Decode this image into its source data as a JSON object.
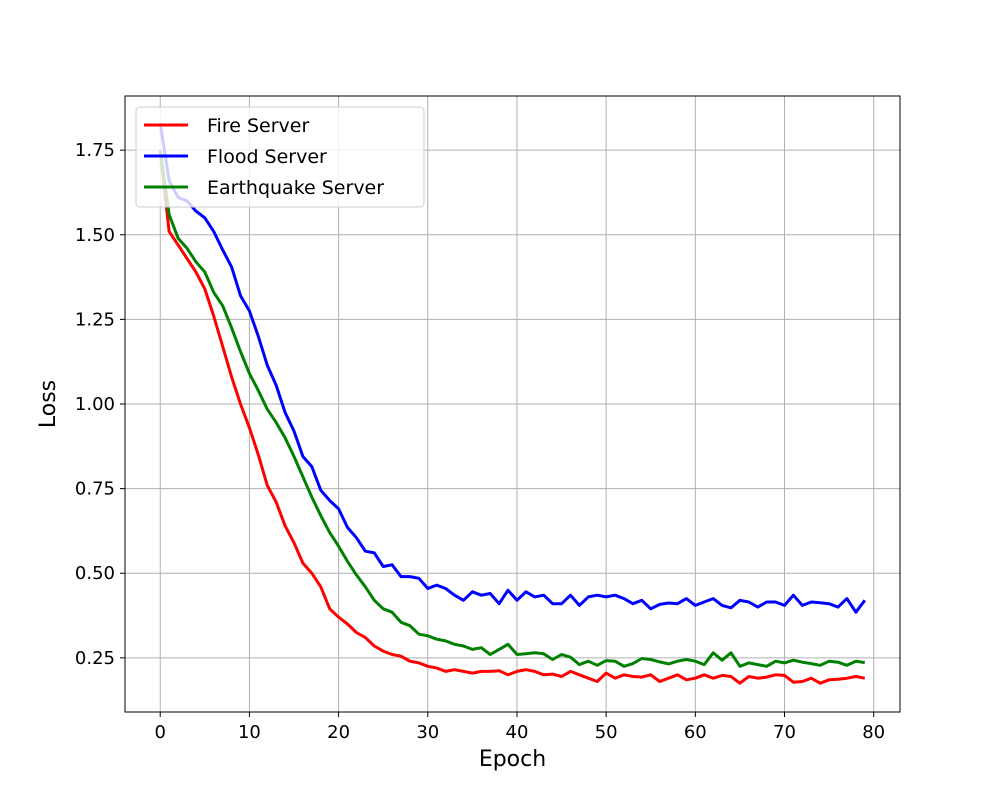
{
  "chart_data": {
    "type": "line",
    "title": "",
    "xlabel": "Epoch",
    "ylabel": "Loss",
    "xlim": [
      -3.95,
      82.95
    ],
    "ylim": [
      0.09,
      1.91
    ],
    "xticks": [
      0,
      10,
      20,
      30,
      40,
      50,
      60,
      70,
      80
    ],
    "yticks": [
      0.25,
      0.5,
      0.75,
      1.0,
      1.25,
      1.5,
      1.75
    ],
    "ytick_labels": [
      "0.25",
      "0.50",
      "0.75",
      "1.00",
      "1.25",
      "1.50",
      "1.75"
    ],
    "grid": true,
    "legend_position": "top-left",
    "x": [
      0,
      1,
      2,
      3,
      4,
      5,
      6,
      7,
      8,
      9,
      10,
      11,
      12,
      13,
      14,
      15,
      16,
      17,
      18,
      19,
      20,
      21,
      22,
      23,
      24,
      25,
      26,
      27,
      28,
      29,
      30,
      31,
      32,
      33,
      34,
      35,
      36,
      37,
      38,
      39,
      40,
      41,
      42,
      43,
      44,
      45,
      46,
      47,
      48,
      49,
      50,
      51,
      52,
      53,
      54,
      55,
      56,
      57,
      58,
      59,
      60,
      61,
      62,
      63,
      64,
      65,
      66,
      67,
      68,
      69,
      70,
      71,
      72,
      73,
      74,
      75,
      76,
      77,
      78,
      79
    ],
    "series": [
      {
        "name": "Fire Server",
        "color": "#ff0000",
        "values": [
          1.75,
          1.51,
          1.47,
          1.43,
          1.39,
          1.34,
          1.26,
          1.17,
          1.08,
          1.0,
          0.93,
          0.85,
          0.76,
          0.71,
          0.64,
          0.59,
          0.53,
          0.5,
          0.46,
          0.395,
          0.37,
          0.35,
          0.325,
          0.31,
          0.285,
          0.27,
          0.26,
          0.255,
          0.24,
          0.235,
          0.225,
          0.22,
          0.21,
          0.215,
          0.21,
          0.205,
          0.21,
          0.21,
          0.212,
          0.2,
          0.21,
          0.215,
          0.21,
          0.2,
          0.202,
          0.195,
          0.21,
          0.2,
          0.19,
          0.18,
          0.205,
          0.19,
          0.2,
          0.195,
          0.193,
          0.2,
          0.18,
          0.19,
          0.2,
          0.185,
          0.19,
          0.2,
          0.19,
          0.198,
          0.195,
          0.175,
          0.195,
          0.19,
          0.193,
          0.2,
          0.198,
          0.178,
          0.18,
          0.19,
          0.175,
          0.185,
          0.187,
          0.19,
          0.195,
          0.19
        ]
      },
      {
        "name": "Flood Server",
        "color": "#0000ff",
        "values": [
          1.83,
          1.66,
          1.61,
          1.6,
          1.57,
          1.55,
          1.51,
          1.455,
          1.405,
          1.32,
          1.275,
          1.2,
          1.115,
          1.055,
          0.975,
          0.92,
          0.845,
          0.815,
          0.745,
          0.715,
          0.69,
          0.635,
          0.605,
          0.565,
          0.56,
          0.52,
          0.525,
          0.49,
          0.49,
          0.485,
          0.455,
          0.465,
          0.455,
          0.435,
          0.42,
          0.445,
          0.435,
          0.44,
          0.41,
          0.45,
          0.42,
          0.445,
          0.43,
          0.435,
          0.41,
          0.41,
          0.435,
          0.405,
          0.43,
          0.435,
          0.43,
          0.435,
          0.425,
          0.41,
          0.42,
          0.395,
          0.408,
          0.412,
          0.41,
          0.425,
          0.405,
          0.415,
          0.425,
          0.405,
          0.398,
          0.42,
          0.415,
          0.4,
          0.415,
          0.415,
          0.405,
          0.435,
          0.405,
          0.415,
          0.413,
          0.41,
          0.4,
          0.425,
          0.385,
          0.42
        ]
      },
      {
        "name": "Earthquake Server",
        "color": "#008000",
        "values": [
          1.75,
          1.56,
          1.49,
          1.46,
          1.42,
          1.39,
          1.33,
          1.29,
          1.225,
          1.155,
          1.09,
          1.04,
          0.985,
          0.945,
          0.9,
          0.845,
          0.785,
          0.725,
          0.67,
          0.62,
          0.58,
          0.535,
          0.495,
          0.46,
          0.42,
          0.395,
          0.385,
          0.355,
          0.345,
          0.32,
          0.315,
          0.305,
          0.3,
          0.29,
          0.285,
          0.275,
          0.28,
          0.26,
          0.275,
          0.29,
          0.26,
          0.262,
          0.265,
          0.262,
          0.245,
          0.26,
          0.252,
          0.23,
          0.24,
          0.228,
          0.242,
          0.24,
          0.225,
          0.233,
          0.248,
          0.245,
          0.238,
          0.232,
          0.24,
          0.245,
          0.24,
          0.23,
          0.265,
          0.243,
          0.265,
          0.225,
          0.235,
          0.23,
          0.225,
          0.24,
          0.235,
          0.243,
          0.237,
          0.233,
          0.228,
          0.24,
          0.237,
          0.228,
          0.24,
          0.236
        ]
      }
    ]
  }
}
